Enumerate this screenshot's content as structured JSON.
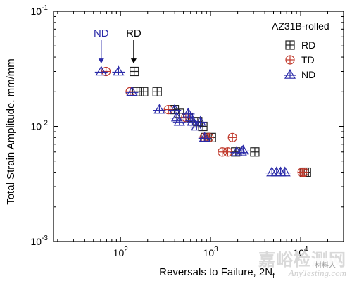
{
  "chart_data": {
    "type": "scatter",
    "title": "",
    "xlabel": "Reversals to Failure, 2N",
    "xlabel_subscript": "f",
    "ylabel": "Total Strain Amplitude, mm/mm",
    "xscale": "log",
    "yscale": "log",
    "xlim": [
      18,
      30000
    ],
    "ylim": [
      0.001,
      0.1
    ],
    "x_ticks": [
      {
        "value": 100,
        "base": "10",
        "exp": "2"
      },
      {
        "value": 1000,
        "base": "10",
        "exp": "3"
      },
      {
        "value": 10000,
        "base": "10",
        "exp": "4"
      }
    ],
    "y_ticks": [
      {
        "value": 0.001,
        "base": "10",
        "exp": "-3"
      },
      {
        "value": 0.01,
        "base": "10",
        "exp": "-2"
      },
      {
        "value": 0.1,
        "base": "10",
        "exp": "-1"
      }
    ],
    "grid": false,
    "legend": {
      "title": "AZ31B-rolled",
      "position": "top-right"
    },
    "annotations": [
      {
        "text": "ND",
        "color": "#2a2aa8",
        "x": 61,
        "y": 0.031
      },
      {
        "text": "RD",
        "color": "#000000",
        "x": 140,
        "y": 0.031
      }
    ],
    "series": [
      {
        "name": "RD",
        "marker": "square-plus",
        "color": "#222222",
        "points": [
          [
            142,
            0.03
          ],
          [
            152,
            0.02
          ],
          [
            180,
            0.02
          ],
          [
            255,
            0.02
          ],
          [
            395,
            0.014
          ],
          [
            450,
            0.013
          ],
          [
            565,
            0.012
          ],
          [
            720,
            0.011
          ],
          [
            820,
            0.01
          ],
          [
            880,
            0.008
          ],
          [
            1020,
            0.008
          ],
          [
            1900,
            0.006
          ],
          [
            3100,
            0.006
          ],
          [
            11000,
            0.004
          ],
          [
            11600,
            0.004
          ]
        ]
      },
      {
        "name": "TD",
        "marker": "circle-plus",
        "color": "#c0392b",
        "points": [
          [
            69,
            0.03
          ],
          [
            128,
            0.02
          ],
          [
            340,
            0.014
          ],
          [
            530,
            0.012
          ],
          [
            850,
            0.008
          ],
          [
            960,
            0.008
          ],
          [
            1350,
            0.006
          ],
          [
            1550,
            0.006
          ],
          [
            1750,
            0.008
          ],
          [
            10400,
            0.004
          ],
          [
            10900,
            0.004
          ]
        ]
      },
      {
        "name": "ND",
        "marker": "triangle-plus",
        "color": "#2a2aa8",
        "points": [
          [
            61,
            0.03
          ],
          [
            95,
            0.03
          ],
          [
            134,
            0.02
          ],
          [
            270,
            0.014
          ],
          [
            400,
            0.014
          ],
          [
            420,
            0.012
          ],
          [
            450,
            0.011
          ],
          [
            565,
            0.013
          ],
          [
            600,
            0.012
          ],
          [
            630,
            0.011
          ],
          [
            700,
            0.01
          ],
          [
            770,
            0.011
          ],
          [
            860,
            0.008
          ],
          [
            1950,
            0.006
          ],
          [
            2200,
            0.006
          ],
          [
            2300,
            0.0062
          ],
          [
            4800,
            0.004
          ],
          [
            5400,
            0.004
          ],
          [
            6000,
            0.004
          ],
          [
            6700,
            0.004
          ]
        ]
      }
    ]
  },
  "watermark": {
    "chinese": "嘉峪检测网",
    "english": "AnyTesting.com",
    "badge": "材料人"
  }
}
